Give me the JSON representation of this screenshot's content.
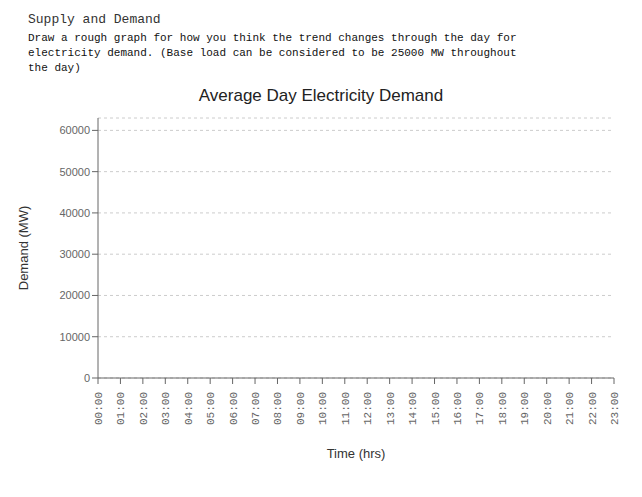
{
  "chart_data": {
    "type": "line",
    "title": "Average Day Electricity Demand",
    "annotations": [
      "Supply and Demand",
      "Draw a rough graph for how you think the trend changes through the day for",
      "electricity demand. (Base load can be considered to be 25000 MW throughout",
      "the day)"
    ],
    "x_label": "Time (hrs)",
    "y_label": "Demand (MW)",
    "categories": [
      "00:00",
      "01:00",
      "02:00",
      "03:00",
      "04:00",
      "05:00",
      "06:00",
      "07:00",
      "08:00",
      "09:00",
      "10:00",
      "11:00",
      "12:00",
      "13:00",
      "14:00",
      "15:00",
      "16:00",
      "17:00",
      "18:00",
      "19:00",
      "20:00",
      "21:00",
      "22:00",
      "23:00"
    ],
    "ylim": [
      0,
      63000
    ],
    "yticks": [
      0,
      10000,
      20000,
      30000,
      40000,
      50000,
      60000
    ],
    "grid": true
  }
}
